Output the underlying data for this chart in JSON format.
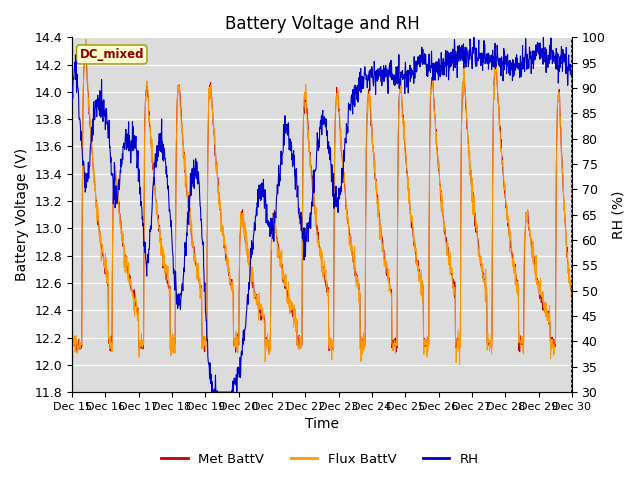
{
  "title": "Battery Voltage and RH",
  "xlabel": "Time",
  "ylabel_left": "Battery Voltage (V)",
  "ylabel_right": "RH (%)",
  "annotation": "DC_mixed",
  "ylim_left": [
    11.8,
    14.4
  ],
  "ylim_right": [
    30,
    100
  ],
  "yticks_left": [
    11.8,
    12.0,
    12.2,
    12.4,
    12.6,
    12.8,
    13.0,
    13.2,
    13.4,
    13.6,
    13.8,
    14.0,
    14.2,
    14.4
  ],
  "yticks_right": [
    30,
    35,
    40,
    45,
    50,
    55,
    60,
    65,
    70,
    75,
    80,
    85,
    90,
    95,
    100
  ],
  "xtick_labels": [
    "Dec 15",
    "Dec 16",
    "Dec 17",
    "Dec 18",
    "Dec 19",
    "Dec 20",
    "Dec 21",
    "Dec 22",
    "Dec 23",
    "Dec 24",
    "Dec 25",
    "Dec 26",
    "Dec 27",
    "Dec 28",
    "Dec 29",
    "Dec 30"
  ],
  "color_met": "#cc0000",
  "color_flux": "#ff9900",
  "color_rh": "#0000cc",
  "legend_labels": [
    "Met BattV",
    "Flux BattV",
    "RH"
  ],
  "title_fontsize": 12,
  "label_fontsize": 10,
  "tick_fontsize": 9,
  "n_days": 15,
  "n_pts_per_day": 96
}
